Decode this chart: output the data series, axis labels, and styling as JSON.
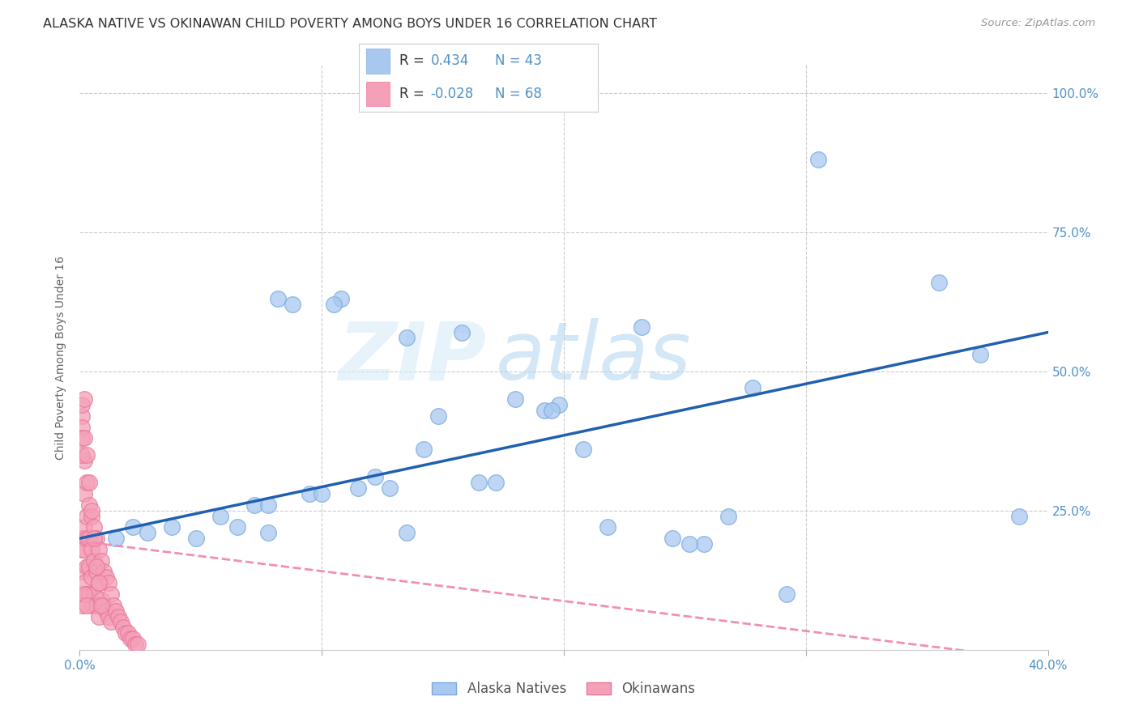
{
  "title": "ALASKA NATIVE VS OKINAWAN CHILD POVERTY AMONG BOYS UNDER 16 CORRELATION CHART",
  "source": "Source: ZipAtlas.com",
  "ylabel": "Child Poverty Among Boys Under 16",
  "xlim": [
    0.0,
    0.4
  ],
  "ylim": [
    0.0,
    1.05
  ],
  "alaska_color": "#a8c8f0",
  "alaska_edge_color": "#7aabdf",
  "okinawan_color": "#f4a0b8",
  "okinawan_edge_color": "#e8789a",
  "alaska_line_color": "#2060b0",
  "okinawan_line_color": "#f090b0",
  "tick_color": "#5090c8",
  "watermark_color": "#d5e8f5",
  "background_color": "#ffffff",
  "grid_color": "#cccccc",
  "alaska_x": [
    0.015,
    0.022,
    0.028,
    0.038,
    0.048,
    0.058,
    0.065,
    0.072,
    0.078,
    0.082,
    0.088,
    0.095,
    0.1,
    0.108,
    0.115,
    0.122,
    0.128,
    0.135,
    0.142,
    0.148,
    0.158,
    0.165,
    0.172,
    0.18,
    0.192,
    0.198,
    0.208,
    0.218,
    0.232,
    0.245,
    0.258,
    0.268,
    0.278,
    0.292,
    0.305,
    0.355,
    0.372,
    0.388,
    0.078,
    0.105,
    0.135,
    0.195,
    0.252
  ],
  "alaska_y": [
    0.2,
    0.22,
    0.21,
    0.22,
    0.2,
    0.24,
    0.22,
    0.26,
    0.26,
    0.63,
    0.62,
    0.28,
    0.28,
    0.63,
    0.29,
    0.31,
    0.29,
    0.56,
    0.36,
    0.42,
    0.57,
    0.3,
    0.3,
    0.45,
    0.43,
    0.44,
    0.36,
    0.22,
    0.58,
    0.2,
    0.19,
    0.24,
    0.47,
    0.1,
    0.88,
    0.66,
    0.53,
    0.24,
    0.21,
    0.62,
    0.21,
    0.43,
    0.19
  ],
  "okinawan_x": [
    0.001,
    0.001,
    0.001,
    0.001,
    0.001,
    0.001,
    0.002,
    0.002,
    0.002,
    0.002,
    0.002,
    0.002,
    0.003,
    0.003,
    0.003,
    0.003,
    0.003,
    0.004,
    0.004,
    0.004,
    0.004,
    0.005,
    0.005,
    0.005,
    0.005,
    0.006,
    0.006,
    0.006,
    0.007,
    0.007,
    0.007,
    0.008,
    0.008,
    0.008,
    0.009,
    0.009,
    0.01,
    0.01,
    0.011,
    0.011,
    0.012,
    0.012,
    0.013,
    0.013,
    0.014,
    0.015,
    0.016,
    0.017,
    0.018,
    0.019,
    0.02,
    0.021,
    0.022,
    0.023,
    0.024,
    0.001,
    0.001,
    0.001,
    0.002,
    0.002,
    0.003,
    0.003,
    0.004,
    0.005,
    0.006,
    0.007,
    0.008,
    0.009
  ],
  "okinawan_y": [
    0.42,
    0.4,
    0.38,
    0.2,
    0.18,
    0.14,
    0.38,
    0.34,
    0.28,
    0.22,
    0.18,
    0.12,
    0.3,
    0.24,
    0.2,
    0.15,
    0.1,
    0.26,
    0.2,
    0.15,
    0.1,
    0.24,
    0.18,
    0.13,
    0.08,
    0.22,
    0.16,
    0.1,
    0.2,
    0.14,
    0.08,
    0.18,
    0.12,
    0.06,
    0.16,
    0.09,
    0.14,
    0.08,
    0.13,
    0.07,
    0.12,
    0.06,
    0.1,
    0.05,
    0.08,
    0.07,
    0.06,
    0.05,
    0.04,
    0.03,
    0.03,
    0.02,
    0.02,
    0.01,
    0.01,
    0.44,
    0.35,
    0.08,
    0.45,
    0.1,
    0.35,
    0.08,
    0.3,
    0.25,
    0.2,
    0.15,
    0.12,
    0.08
  ],
  "alaska_line_x0": 0.0,
  "alaska_line_y0": 0.2,
  "alaska_line_x1": 0.4,
  "alaska_line_y1": 0.57,
  "okinawan_line_x0": 0.0,
  "okinawan_line_y0": 0.195,
  "okinawan_line_x1": 0.4,
  "okinawan_line_y1": -0.02,
  "title_fontsize": 11.5,
  "tick_fontsize": 11,
  "ylabel_fontsize": 10,
  "legend_fontsize": 12
}
